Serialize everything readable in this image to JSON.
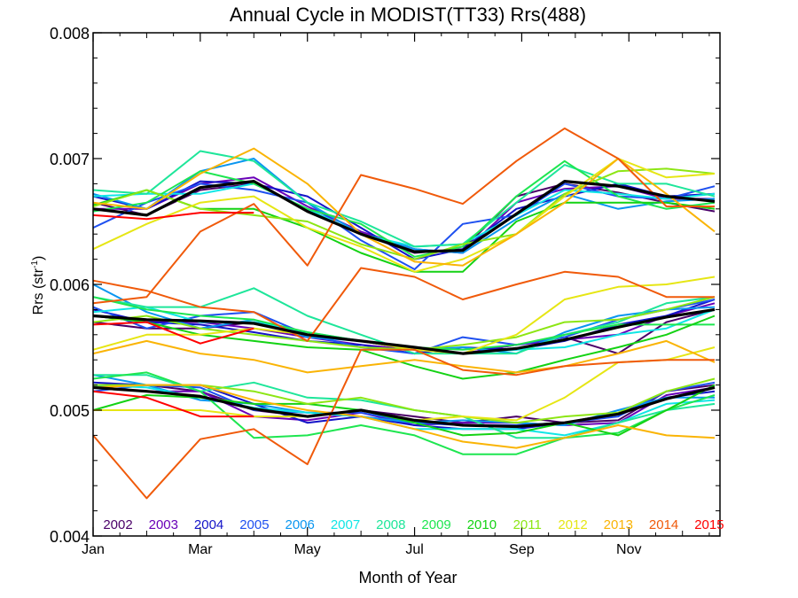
{
  "chart_data": {
    "type": "line",
    "title": "Annual Cycle in MODIST(TT33) Rrs(488)",
    "xlabel": "Month of Year",
    "ylabel": "Rrs (str",
    "ylabel_sup": "-1",
    "ylabel_close": ")",
    "xlim": [
      1,
      12.7
    ],
    "ylim": [
      0.004,
      0.008
    ],
    "x_ticks": [
      {
        "x": 1,
        "label": "Jan"
      },
      {
        "x": 3,
        "label": "Mar"
      },
      {
        "x": 5,
        "label": "May"
      },
      {
        "x": 7,
        "label": "Jul"
      },
      {
        "x": 9,
        "label": "Sep"
      },
      {
        "x": 11,
        "label": "Nov"
      }
    ],
    "y_ticks": [
      {
        "y": 0.004,
        "label": "0.004"
      },
      {
        "y": 0.005,
        "label": "0.005"
      },
      {
        "y": 0.006,
        "label": "0.006"
      },
      {
        "y": 0.007,
        "label": "0.007"
      },
      {
        "y": 0.008,
        "label": "0.008"
      }
    ],
    "grid": false,
    "legend_position": "bottom (inside plot area)",
    "x": [
      1.0,
      2.0,
      3.0,
      4.0,
      5.0,
      6.0,
      7.0,
      7.9,
      8.9,
      9.8,
      10.8,
      11.7,
      12.6
    ],
    "series": [
      {
        "name": "2002",
        "color": "#4a0068",
        "values": [
          [
            0.00665,
            0.00655,
            0.00675,
            0.0068,
            0.0066,
            0.0064,
            0.00625,
            0.00628,
            0.0067,
            0.0068,
            0.00673,
            0.00665,
            0.00658
          ],
          [
            0.0057,
            0.00565,
            0.00565,
            0.0057,
            0.0056,
            0.00555,
            0.00548,
            0.00545,
            0.00552,
            0.00558,
            0.00545,
            0.0057,
            0.0058
          ],
          [
            0.0052,
            0.0052,
            0.00515,
            0.005,
            0.00495,
            0.005,
            0.00495,
            0.0049,
            0.00495,
            0.0049,
            0.00492,
            0.00515,
            0.0052
          ]
        ]
      },
      {
        "name": "2003",
        "color": "#6a00b8",
        "values": [
          [
            0.0066,
            0.0066,
            0.0068,
            0.00685,
            0.00662,
            0.00642,
            0.00628,
            0.00625,
            0.00665,
            0.00676,
            0.00678,
            0.00668,
            0.00668
          ],
          [
            0.00575,
            0.0057,
            0.0057,
            0.00565,
            0.00558,
            0.00552,
            0.00548,
            0.00545,
            0.00552,
            0.00556,
            0.0056,
            0.00575,
            0.00585
          ],
          [
            0.00518,
            0.00515,
            0.00515,
            0.00495,
            0.00492,
            0.00498,
            0.00488,
            0.0049,
            0.0049,
            0.00488,
            0.0049,
            0.00512,
            0.00518
          ]
        ]
      },
      {
        "name": "2004",
        "color": "#1414c8",
        "values": [
          [
            0.0067,
            0.0066,
            0.00682,
            0.0068,
            0.0067,
            0.00645,
            0.0062,
            0.00628,
            0.0066,
            0.0067,
            0.0068,
            0.0067,
            0.00672
          ],
          [
            0.0058,
            0.0057,
            0.00568,
            0.00562,
            0.00555,
            0.00552,
            0.00545,
            0.0055,
            0.00548,
            0.00555,
            0.00568,
            0.00575,
            0.00588
          ],
          [
            0.00522,
            0.0052,
            0.0052,
            0.00505,
            0.0049,
            0.00495,
            0.00488,
            0.00485,
            0.00485,
            0.0049,
            0.00498,
            0.0051,
            0.00515
          ]
        ]
      },
      {
        "name": "2005",
        "color": "#1e50f0",
        "values": [
          [
            0.00645,
            0.00665,
            0.0068,
            0.00675,
            0.00665,
            0.00635,
            0.00612,
            0.00648,
            0.00655,
            0.0068,
            0.0067,
            0.00668,
            0.00678
          ],
          [
            0.00582,
            0.00565,
            0.00575,
            0.00578,
            0.0056,
            0.0055,
            0.00545,
            0.00558,
            0.00552,
            0.00558,
            0.00572,
            0.0058,
            0.00588
          ],
          [
            0.00515,
            0.0052,
            0.00518,
            0.005,
            0.00498,
            0.00498,
            0.0049,
            0.00488,
            0.00488,
            0.0049,
            0.00495,
            0.00515,
            0.00522
          ]
        ]
      },
      {
        "name": "2006",
        "color": "#0a96f0",
        "values": [
          [
            0.00672,
            0.0066,
            0.0069,
            0.007,
            0.00665,
            0.0064,
            0.00628,
            0.00625,
            0.00652,
            0.00672,
            0.0066,
            0.00666,
            0.00668
          ],
          [
            0.006,
            0.00578,
            0.00565,
            0.00572,
            0.00558,
            0.00555,
            0.00548,
            0.0055,
            0.00545,
            0.00562,
            0.00575,
            0.0058,
            0.00582
          ],
          [
            0.00528,
            0.0052,
            0.00508,
            0.00505,
            0.00498,
            0.00495,
            0.0049,
            0.00492,
            0.0049,
            0.00488,
            0.005,
            0.0051,
            0.0051
          ]
        ]
      },
      {
        "name": "2007",
        "color": "#10e6e6",
        "values": [
          [
            0.0067,
            0.00672,
            0.00672,
            0.0068,
            0.0066,
            0.0064,
            0.0063,
            0.00632,
            0.00655,
            0.00675,
            0.00672,
            0.00668,
            0.00672
          ],
          [
            0.00578,
            0.00582,
            0.0057,
            0.0057,
            0.00562,
            0.00555,
            0.0055,
            0.00545,
            0.00548,
            0.0055,
            0.0056,
            0.00565,
            0.0058
          ],
          [
            0.0052,
            0.00518,
            0.0051,
            0.00502,
            0.00498,
            0.00495,
            0.00485,
            0.00485,
            0.00485,
            0.0048,
            0.0049,
            0.00505,
            0.00508
          ]
        ]
      },
      {
        "name": "2008",
        "color": "#1ee69a",
        "values": [
          [
            0.00675,
            0.00672,
            0.00706,
            0.00698,
            0.00665,
            0.0065,
            0.0063,
            0.00632,
            0.00665,
            0.00695,
            0.0068,
            0.0068,
            0.0067
          ],
          [
            0.0059,
            0.00582,
            0.00582,
            0.00597,
            0.00575,
            0.0056,
            0.00545,
            0.00545,
            0.00545,
            0.0056,
            0.0057,
            0.00585,
            0.0059
          ],
          [
            0.00528,
            0.00528,
            0.00515,
            0.00522,
            0.0051,
            0.00508,
            0.005,
            0.00495,
            0.00478,
            0.00478,
            0.0049,
            0.005,
            0.00505
          ]
        ]
      },
      {
        "name": "2009",
        "color": "#1ee650",
        "values": [
          [
            0.00658,
            0.00665,
            0.0069,
            0.0068,
            0.0066,
            0.00648,
            0.00622,
            0.0063,
            0.0067,
            0.00698,
            0.0067,
            0.0066,
            0.00665
          ],
          [
            0.0059,
            0.0058,
            0.00575,
            0.00572,
            0.00562,
            0.00555,
            0.0055,
            0.00548,
            0.00552,
            0.0056,
            0.00568,
            0.00568,
            0.00568
          ],
          [
            0.00525,
            0.0053,
            0.00515,
            0.00478,
            0.0048,
            0.00488,
            0.0048,
            0.00465,
            0.00465,
            0.00478,
            0.00482,
            0.005,
            0.00512
          ]
        ]
      },
      {
        "name": "2010",
        "color": "#14d214",
        "values": [
          [
            0.00663,
            0.00675,
            0.0066,
            0.0066,
            0.00645,
            0.00625,
            0.0061,
            0.0061,
            0.0065,
            0.00665,
            0.00665,
            0.00665,
            0.0066
          ],
          [
            0.00575,
            0.0057,
            0.0056,
            0.00555,
            0.0055,
            0.00548,
            0.00535,
            0.00525,
            0.0053,
            0.0054,
            0.0055,
            0.0056,
            0.00575
          ],
          [
            0.005,
            0.00512,
            0.0051,
            0.00505,
            0.00505,
            0.005,
            0.0049,
            0.0048,
            0.00482,
            0.0049,
            0.0048,
            0.005,
            0.0052
          ]
        ]
      },
      {
        "name": "2011",
        "color": "#8ce614",
        "values": [
          [
            0.00662,
            0.00675,
            0.0066,
            0.00655,
            0.0065,
            0.00632,
            0.0062,
            0.00632,
            0.0064,
            0.00672,
            0.0069,
            0.00692,
            0.00688
          ],
          [
            0.0057,
            0.00575,
            0.00565,
            0.0056,
            0.00555,
            0.0055,
            0.00548,
            0.00552,
            0.00558,
            0.0057,
            0.00572,
            0.0058,
            0.0059
          ],
          [
            0.0052,
            0.0052,
            0.0052,
            0.00515,
            0.00505,
            0.0051,
            0.005,
            0.00495,
            0.0049,
            0.00495,
            0.00498,
            0.00515,
            0.00525
          ]
        ]
      },
      {
        "name": "2012",
        "color": "#e6e614",
        "values": [
          [
            0.00628,
            0.00648,
            0.00665,
            0.0067,
            0.00645,
            0.0063,
            0.0061,
            0.0062,
            0.0064,
            0.0067,
            0.007,
            0.00685,
            0.00688
          ],
          [
            0.00548,
            0.0056,
            0.0056,
            0.00565,
            0.0056,
            0.00555,
            0.00548,
            0.00545,
            0.0056,
            0.00588,
            0.00598,
            0.006,
            0.00606
          ],
          [
            0.005,
            0.005,
            0.005,
            0.00495,
            0.00495,
            0.005,
            0.00492,
            0.00495,
            0.00492,
            0.0051,
            0.00538,
            0.0054,
            0.0055
          ]
        ]
      },
      {
        "name": "2013",
        "color": "#fab405",
        "values": [
          [
            0.00665,
            0.0066,
            0.00688,
            0.00708,
            0.0068,
            0.0064,
            0.00618,
            0.00615,
            0.0064,
            0.00665,
            0.007,
            0.00672,
            0.00642
          ],
          [
            0.00545,
            0.00555,
            0.00545,
            0.0054,
            0.0053,
            0.00535,
            0.0054,
            0.00535,
            0.0053,
            0.00535,
            0.00545,
            0.00555,
            0.00538
          ],
          [
            0.00518,
            0.0052,
            0.0052,
            0.00508,
            0.005,
            0.00495,
            0.00485,
            0.00475,
            0.0047,
            0.00478,
            0.00488,
            0.0048,
            0.00478
          ]
        ]
      },
      {
        "name": "2014",
        "color": "#f05a0a",
        "values": [
          [
            0.00585,
            0.0059,
            0.00642,
            0.00664,
            0.00615,
            0.00687,
            0.00676,
            0.00664,
            0.00698,
            0.00724,
            0.007,
            0.00662,
            0.00662
          ],
          [
            0.00603,
            0.00595,
            0.00582,
            0.00578,
            0.00555,
            0.00613,
            0.00606,
            0.00588,
            0.006,
            0.0061,
            0.00606,
            0.0059,
            0.0059
          ],
          [
            0.0048,
            0.0043,
            0.00477,
            0.00485,
            0.00457,
            0.00548,
            0.00548,
            0.00532,
            0.00528,
            0.00535,
            0.00538,
            0.0054,
            0.0054
          ]
        ]
      },
      {
        "name": "2015",
        "color": "#ff0000",
        "values": [
          [
            0.00655,
            0.00652,
            0.00657,
            0.00657,
            null,
            null,
            null,
            null,
            null,
            null,
            null,
            null,
            null
          ],
          [
            0.00568,
            0.0057,
            0.00553,
            0.00565,
            null,
            null,
            null,
            null,
            null,
            null,
            null,
            null,
            null
          ],
          [
            0.00515,
            0.0051,
            0.00495,
            0.00495,
            null,
            null,
            null,
            null,
            null,
            null,
            null,
            null,
            null
          ]
        ]
      },
      {
        "name": "",
        "color": "#000000",
        "mean": true,
        "values": [
          [
            0.0066,
            0.00655,
            0.00677,
            0.00682,
            0.00658,
            0.0064,
            0.00626,
            0.00627,
            0.00656,
            0.00682,
            0.00678,
            0.0067,
            0.00666
          ],
          [
            0.00575,
            0.00572,
            0.00571,
            0.00569,
            0.0056,
            0.00555,
            0.0055,
            0.00545,
            0.00549,
            0.00556,
            0.00566,
            0.00574,
            0.0058
          ],
          [
            0.00518,
            0.00515,
            0.00511,
            0.00501,
            0.00495,
            0.005,
            0.00492,
            0.00488,
            0.00487,
            0.0049,
            0.00497,
            0.00509,
            0.00518
          ]
        ]
      }
    ]
  }
}
